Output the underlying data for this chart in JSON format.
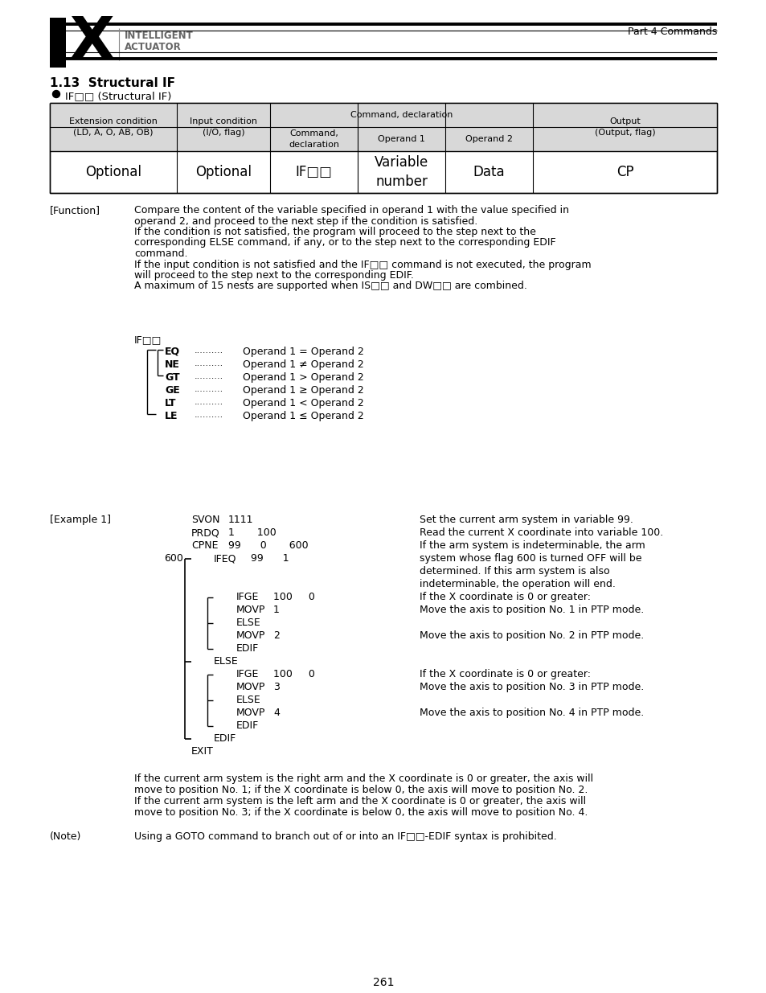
{
  "page_number": "261",
  "header_text": "Part 4 Commands",
  "section_title": "1.13  Structural IF",
  "bullet_label": "IF□□ (Structural IF)",
  "function_label": "[Function]",
  "function_text": [
    "Compare the content of the variable specified in operand 1 with the value specified in",
    "operand 2, and proceed to the next step if the condition is satisfied.",
    "If the condition is not satisfied, the program will proceed to the step next to the",
    "corresponding ELSE command, if any, or to the step next to the corresponding EDIF",
    "command.",
    "If the input condition is not satisfied and the IF□□ command is not executed, the program",
    "will proceed to the step next to the corresponding EDIF.",
    "A maximum of 15 nests are supported when IS□□ and DW□□ are combined."
  ],
  "if_diagram_label": "IF□□",
  "if_diagram_rows": [
    [
      "EQ",
      "Operand 1 = Operand 2"
    ],
    [
      "NE",
      "Operand 1 ≠ Operand 2"
    ],
    [
      "GT",
      "Operand 1 > Operand 2"
    ],
    [
      "GE",
      "Operand 1 ≥ Operand 2"
    ],
    [
      "LT",
      "Operand 1 < Operand 2"
    ],
    [
      "LE",
      "Operand 1 ≤ Operand 2"
    ]
  ],
  "example_label": "[Example 1]",
  "summary_text": [
    "If the current arm system is the right arm and the X coordinate is 0 or greater, the axis will",
    "move to position No. 1; if the X coordinate is below 0, the axis will move to position No. 2.",
    "If the current arm system is the left arm and the X coordinate is 0 or greater, the axis will",
    "move to position No. 3; if the X coordinate is below 0, the axis will move to position No. 4."
  ],
  "note_label": "(Note)",
  "note_text": "Using a GOTO command to branch out of or into an IF□□-EDIF syntax is prohibited.",
  "bg_color": "#ffffff"
}
